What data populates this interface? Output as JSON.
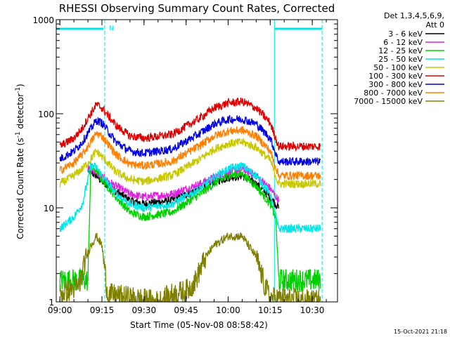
{
  "chart_data": {
    "type": "line",
    "title": "RHESSI Observing Summary Count Rates, Corrected",
    "xlabel": "Start Time (05-Nov-08 08:58:42)",
    "ylabel_main": "Corrected Count Rate (s",
    "ylabel_sup1": "-1",
    "ylabel_mid": " detector",
    "ylabel_sup2": "-1",
    "ylabel_end": ")",
    "x_scale": "time",
    "y_scale": "log",
    "xlim": [
      "08:58:42",
      "10:39:00"
    ],
    "ylim": [
      1,
      1000
    ],
    "x_ticks": [
      "09:00",
      "09:15",
      "09:30",
      "09:45",
      "10:00",
      "10:15",
      "10:30"
    ],
    "y_ticks": [
      "1",
      "10",
      "100",
      "1000"
    ],
    "grid": false,
    "legend": {
      "placement": "top-right",
      "header_line1": "Det 1,3,4,5,6,9,",
      "header_line2": "Att 0"
    },
    "footer_date": "15-Oct-2021 21:18",
    "annotations": [
      {
        "text": "N",
        "x": "09:16:00",
        "y": 800,
        "color": "#00e5e5"
      }
    ],
    "flag_bars": [
      {
        "from": "08:58:42",
        "to": "09:15:30",
        "y": 800,
        "color": "#00e5e5"
      },
      {
        "from": "10:16:30",
        "to": "10:33:30",
        "y": 800,
        "color": "#00e5e5"
      }
    ],
    "markers": [
      {
        "x": "09:16:00",
        "color": "#00e5e5",
        "style": "dashed"
      },
      {
        "x": "10:16:30",
        "color": "#00e5e5",
        "style": "solid"
      },
      {
        "x": "10:33:30",
        "color": "#00e5e5",
        "style": "dashed"
      }
    ],
    "data_range": [
      "09:00",
      "10:33"
    ],
    "series": [
      {
        "name": "3 - 6 keV",
        "color": "#000000",
        "points": [
          [
            "09:10",
            25
          ],
          [
            "09:13",
            22
          ],
          [
            "09:15",
            19
          ],
          [
            "09:20",
            15
          ],
          [
            "09:25",
            12
          ],
          [
            "09:30",
            11
          ],
          [
            "09:40",
            12
          ],
          [
            "09:50",
            16
          ],
          [
            "09:55",
            19
          ],
          [
            "10:00",
            21
          ],
          [
            "10:05",
            22
          ],
          [
            "10:10",
            18
          ],
          [
            "10:15",
            13
          ],
          [
            "10:18",
            10
          ]
        ]
      },
      {
        "name": "6 - 12 keV",
        "color": "#e020e0",
        "points": [
          [
            "09:10",
            27
          ],
          [
            "09:13",
            24
          ],
          [
            "09:15",
            21
          ],
          [
            "09:20",
            17
          ],
          [
            "09:25",
            14
          ],
          [
            "09:30",
            13
          ],
          [
            "09:40",
            14
          ],
          [
            "09:50",
            18
          ],
          [
            "09:55",
            21
          ],
          [
            "10:00",
            24
          ],
          [
            "10:05",
            26
          ],
          [
            "10:10",
            22
          ],
          [
            "10:15",
            16
          ],
          [
            "10:18",
            12
          ]
        ]
      },
      {
        "name": "12 - 25 keV",
        "color": "#00d000",
        "points": [
          [
            "09:00",
            1.7
          ],
          [
            "09:05",
            1.7
          ],
          [
            "09:10",
            1.7
          ],
          [
            "09:11",
            27
          ],
          [
            "09:13",
            25
          ],
          [
            "09:15",
            20
          ],
          [
            "09:20",
            13
          ],
          [
            "09:25",
            9
          ],
          [
            "09:30",
            8
          ],
          [
            "09:40",
            9
          ],
          [
            "09:50",
            14
          ],
          [
            "09:55",
            18
          ],
          [
            "10:00",
            22
          ],
          [
            "10:05",
            23
          ],
          [
            "10:10",
            17
          ],
          [
            "10:15",
            11
          ],
          [
            "10:17",
            8
          ],
          [
            "10:18",
            1.7
          ],
          [
            "10:33",
            1.7
          ]
        ]
      },
      {
        "name": "25 - 50 keV",
        "color": "#00e5e5",
        "points": [
          [
            "09:00",
            6
          ],
          [
            "09:05",
            8
          ],
          [
            "09:08",
            11
          ],
          [
            "09:10",
            20
          ],
          [
            "09:11",
            28
          ],
          [
            "09:13",
            27
          ],
          [
            "09:15",
            22
          ],
          [
            "09:20",
            14
          ],
          [
            "09:25",
            11
          ],
          [
            "09:30",
            10
          ],
          [
            "09:40",
            11
          ],
          [
            "09:50",
            16
          ],
          [
            "09:55",
            21
          ],
          [
            "10:00",
            26
          ],
          [
            "10:05",
            28
          ],
          [
            "10:10",
            22
          ],
          [
            "10:15",
            14
          ],
          [
            "10:18",
            6
          ],
          [
            "10:33",
            6
          ]
        ]
      },
      {
        "name": "50 - 100 keV",
        "color": "#c8c800",
        "points": [
          [
            "09:00",
            18
          ],
          [
            "09:05",
            22
          ],
          [
            "09:08",
            26
          ],
          [
            "09:10",
            30
          ],
          [
            "09:13",
            40
          ],
          [
            "09:15",
            35
          ],
          [
            "09:20",
            24
          ],
          [
            "09:25",
            20
          ],
          [
            "09:30",
            19
          ],
          [
            "09:40",
            22
          ],
          [
            "09:50",
            33
          ],
          [
            "09:55",
            42
          ],
          [
            "10:00",
            48
          ],
          [
            "10:05",
            50
          ],
          [
            "10:10",
            44
          ],
          [
            "10:15",
            32
          ],
          [
            "10:18",
            18
          ],
          [
            "10:33",
            18
          ]
        ]
      },
      {
        "name": "100 - 300 keV",
        "color": "#e00000",
        "points": [
          [
            "09:00",
            45
          ],
          [
            "09:05",
            55
          ],
          [
            "09:08",
            70
          ],
          [
            "09:10",
            90
          ],
          [
            "09:13",
            125
          ],
          [
            "09:15",
            115
          ],
          [
            "09:20",
            75
          ],
          [
            "09:25",
            58
          ],
          [
            "09:30",
            55
          ],
          [
            "09:40",
            60
          ],
          [
            "09:50",
            90
          ],
          [
            "09:55",
            115
          ],
          [
            "10:00",
            130
          ],
          [
            "10:05",
            135
          ],
          [
            "10:10",
            115
          ],
          [
            "10:15",
            80
          ],
          [
            "10:18",
            45
          ],
          [
            "10:33",
            45
          ]
        ]
      },
      {
        "name": "300 - 800 keV",
        "color": "#0000e0",
        "points": [
          [
            "09:00",
            33
          ],
          [
            "09:05",
            40
          ],
          [
            "09:08",
            50
          ],
          [
            "09:10",
            62
          ],
          [
            "09:13",
            85
          ],
          [
            "09:15",
            80
          ],
          [
            "09:20",
            50
          ],
          [
            "09:25",
            40
          ],
          [
            "09:30",
            38
          ],
          [
            "09:40",
            42
          ],
          [
            "09:50",
            62
          ],
          [
            "09:55",
            78
          ],
          [
            "10:00",
            87
          ],
          [
            "10:05",
            88
          ],
          [
            "10:10",
            78
          ],
          [
            "10:15",
            55
          ],
          [
            "10:18",
            31
          ],
          [
            "10:33",
            31
          ]
        ]
      },
      {
        "name": "800 - 7000 keV",
        "color": "#ff8000",
        "points": [
          [
            "09:00",
            25
          ],
          [
            "09:05",
            30
          ],
          [
            "09:08",
            37
          ],
          [
            "09:10",
            45
          ],
          [
            "09:13",
            62
          ],
          [
            "09:15",
            58
          ],
          [
            "09:20",
            37
          ],
          [
            "09:25",
            29
          ],
          [
            "09:30",
            28
          ],
          [
            "09:40",
            31
          ],
          [
            "09:50",
            46
          ],
          [
            "09:55",
            58
          ],
          [
            "10:00",
            65
          ],
          [
            "10:05",
            67
          ],
          [
            "10:10",
            58
          ],
          [
            "10:15",
            40
          ],
          [
            "10:18",
            22
          ],
          [
            "10:33",
            22
          ]
        ]
      },
      {
        "name": "7000 - 15000 keV",
        "color": "#808000",
        "points": [
          [
            "09:00",
            1.2
          ],
          [
            "09:07",
            1.5
          ],
          [
            "09:09",
            2.7
          ],
          [
            "09:11",
            4
          ],
          [
            "09:13",
            5
          ],
          [
            "09:15",
            4
          ],
          [
            "09:17",
            1.2
          ],
          [
            "09:35",
            1
          ],
          [
            "09:40",
            1.2
          ],
          [
            "09:45",
            1.3
          ],
          [
            "09:48",
            1.6
          ],
          [
            "09:52",
            3
          ],
          [
            "09:55",
            4
          ],
          [
            "10:00",
            5
          ],
          [
            "10:05",
            5
          ],
          [
            "10:10",
            3
          ],
          [
            "10:13",
            1.5
          ],
          [
            "10:15",
            1.1
          ],
          [
            "10:33",
            1
          ]
        ]
      }
    ]
  }
}
